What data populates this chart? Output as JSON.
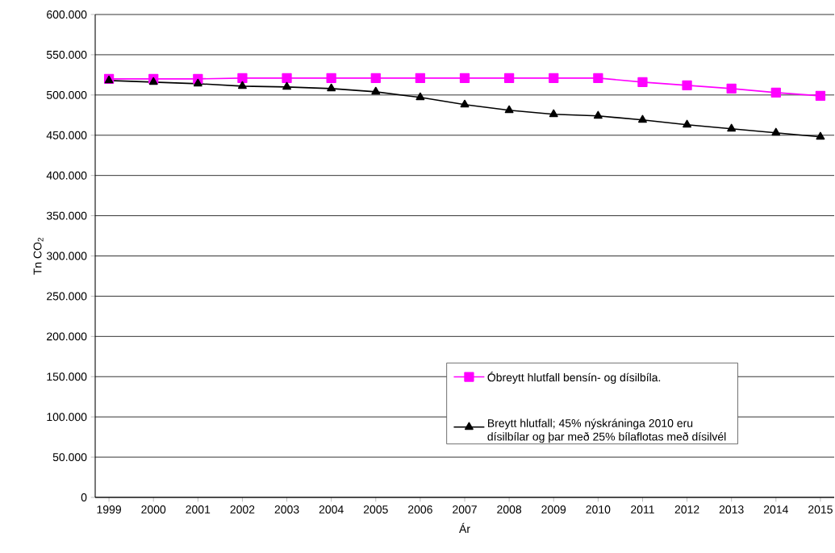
{
  "chart_data": {
    "type": "line",
    "xlabel": "Ár",
    "ylabel": "Tn CO$_{2}$",
    "categories": [
      "1999",
      "2000",
      "2001",
      "2002",
      "2003",
      "2004",
      "2005",
      "2006",
      "2007",
      "2008",
      "2009",
      "2010",
      "2011",
      "2012",
      "2013",
      "2014",
      "2015"
    ],
    "series": [
      {
        "name": "Óbreytt hlutfall bensín- og dísilbíla.",
        "color": "#ff00ff",
        "marker": "square",
        "values": [
          520000,
          520000,
          520000,
          521000,
          521000,
          521000,
          521000,
          521000,
          521000,
          521000,
          521000,
          521000,
          516000,
          512000,
          508000,
          503000,
          499000
        ]
      },
      {
        "name": "Breytt hlutfall; 45% nýskráninga 2010 eru dísilbílar og þar með 25% bílaflotas með dísilvél",
        "color": "#000000",
        "marker": "triangle",
        "values": [
          518000,
          516000,
          514000,
          511000,
          510000,
          508000,
          504000,
          497000,
          488000,
          481000,
          476000,
          474000,
          469000,
          463000,
          458000,
          453000,
          448000
        ]
      }
    ],
    "ylim": [
      0,
      600000
    ],
    "yticks": [
      0,
      {
        "value": 50000,
        "label": "50.000"
      },
      {
        "value": 100000,
        "label": "100.000"
      },
      {
        "value": 150000,
        "label": "150.000"
      },
      {
        "value": 200000,
        "label": "200.000"
      },
      {
        "value": 250000,
        "label": "250.000"
      },
      {
        "value": 300000,
        "label": "300.000"
      },
      {
        "value": 350000,
        "label": "350.000"
      },
      {
        "value": 400000,
        "label": "400.000"
      },
      {
        "value": 450000,
        "label": "450.000"
      },
      {
        "value": 500000,
        "label": "500.000"
      },
      {
        "value": 550000,
        "label": "550.000"
      },
      {
        "value": 600000,
        "label": "600.000"
      }
    ],
    "grid": "y",
    "legend": "bottom right",
    "line_style": "solid"
  }
}
